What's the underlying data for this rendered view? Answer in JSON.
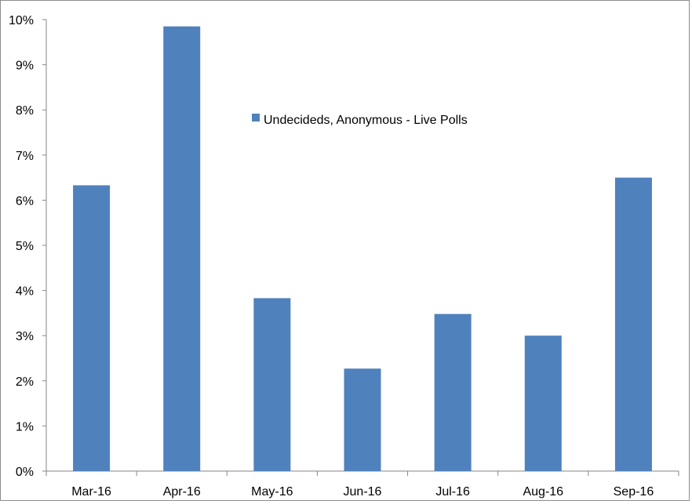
{
  "chart_data": {
    "type": "bar",
    "categories": [
      "Mar-16",
      "Apr-16",
      "May-16",
      "Jun-16",
      "Jul-16",
      "Aug-16",
      "Sep-16"
    ],
    "series": [
      {
        "name": "Undecideds, Anonymous - Live Polls",
        "color": "#4f81bd",
        "values": [
          6.33,
          9.85,
          3.83,
          2.27,
          3.48,
          3.0,
          6.5
        ]
      }
    ],
    "ylim": [
      0,
      10
    ],
    "yticks": [
      0,
      1,
      2,
      3,
      4,
      5,
      6,
      7,
      8,
      9,
      10
    ],
    "ytick_labels": [
      "0%",
      "1%",
      "2%",
      "3%",
      "4%",
      "5%",
      "6%",
      "7%",
      "8%",
      "9%",
      "10%"
    ],
    "title": "",
    "xlabel": "",
    "ylabel": "",
    "grid": false,
    "legend": {
      "position": "center-top",
      "entries": [
        "Undecideds, Anonymous - Live Polls"
      ]
    }
  }
}
